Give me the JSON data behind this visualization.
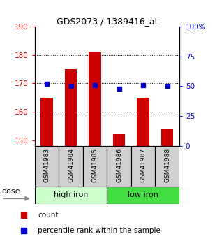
{
  "title": "GDS2073 / 1389416_at",
  "samples": [
    "GSM41983",
    "GSM41984",
    "GSM41985",
    "GSM41986",
    "GSM41987",
    "GSM41988"
  ],
  "counts": [
    165,
    175,
    181,
    152,
    165,
    154
  ],
  "percentiles": [
    52,
    50,
    51,
    48,
    51,
    50
  ],
  "ylim_left": [
    148,
    190
  ],
  "ylim_right": [
    0,
    100
  ],
  "yticks_left": [
    150,
    160,
    170,
    180,
    190
  ],
  "yticks_right": [
    0,
    25,
    50,
    75,
    100
  ],
  "bar_color": "#cc0000",
  "dot_color": "#0000cc",
  "bar_width": 0.5,
  "groups": [
    {
      "label": "high iron",
      "indices": [
        0,
        1,
        2
      ],
      "color": "#ccffcc"
    },
    {
      "label": "low iron",
      "indices": [
        3,
        4,
        5
      ],
      "color": "#44dd44"
    }
  ],
  "dose_label": "dose",
  "legend_items": [
    {
      "label": "count",
      "color": "#cc0000"
    },
    {
      "label": "percentile rank within the sample",
      "color": "#0000cc"
    }
  ],
  "grid_color": "black",
  "grid_style": "dotted",
  "grid_yticks": [
    160,
    170,
    180
  ],
  "tick_label_color_left": "#cc0000",
  "tick_label_color_right": "#0000cc",
  "sample_box_color": "#d0d0d0",
  "fig_width": 3.21,
  "fig_height": 3.45,
  "dpi": 100
}
